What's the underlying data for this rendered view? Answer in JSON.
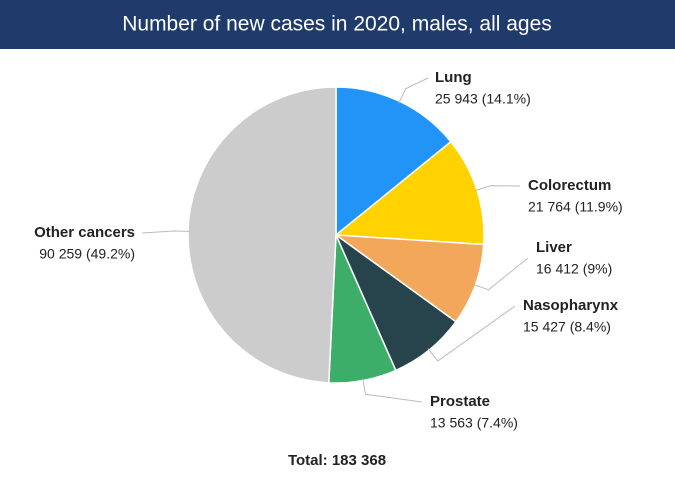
{
  "chart_data": {
    "type": "pie",
    "title": "Number of new cases in 2020, males, all ages",
    "categories": [
      "Lung",
      "Colorectum",
      "Liver",
      "Nasopharynx",
      "Prostate",
      "Other cancers"
    ],
    "values": [
      25943,
      21764,
      16412,
      15427,
      13563,
      90259
    ],
    "value_labels": [
      "25 943 (14.1%)",
      "21 764 (11.9%)",
      "16 412 (9%)",
      "15 427 (8.4%)",
      "13 563 (7.4%)",
      "90 259 (49.2%)"
    ],
    "colors": [
      "#2293f7",
      "#ffd200",
      "#f2a75a",
      "#27434b",
      "#3dae6a",
      "#cccccc"
    ],
    "total_label": "Total: 183 368"
  }
}
